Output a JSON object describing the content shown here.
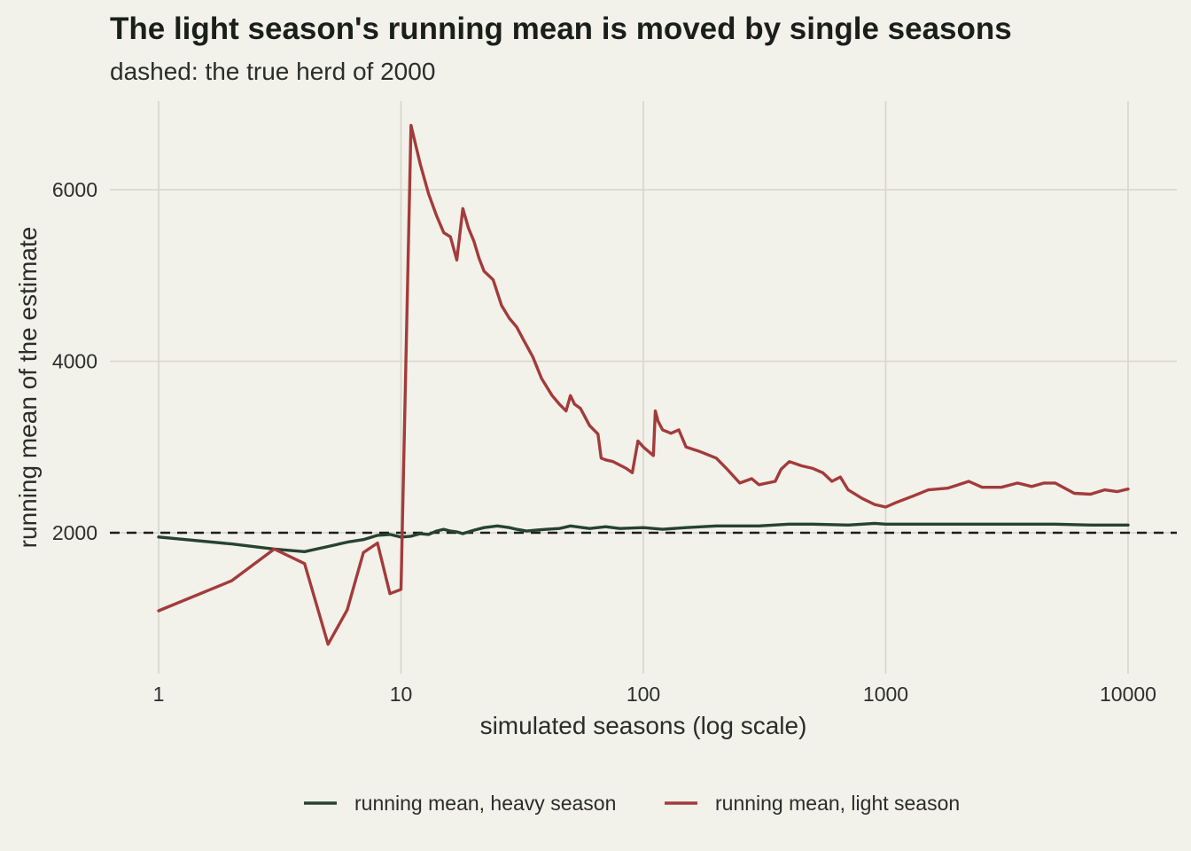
{
  "chart_data": {
    "type": "line",
    "title": "The light season's running mean is moved by single seasons",
    "subtitle": "dashed: the true herd of 2000",
    "xlabel": "simulated seasons (log scale)",
    "ylabel": "running mean of the estimate",
    "x_scale": "log10",
    "xlim": [
      1,
      10000
    ],
    "ylim": [
      500,
      7000
    ],
    "x_ticks": [
      1,
      10,
      100,
      1000,
      10000
    ],
    "x_tick_labels": [
      "1",
      "10",
      "100",
      "1000",
      "10000"
    ],
    "y_ticks": [
      2000,
      4000,
      6000
    ],
    "y_tick_labels": [
      "2000",
      "4000",
      "6000"
    ],
    "grid": true,
    "legend_position": "bottom",
    "reference_line": {
      "y": 2000,
      "style": "dashed",
      "color": "#1a1f1b"
    },
    "series": [
      {
        "name": "running mean, heavy season",
        "color": "#26432f",
        "points": [
          [
            1,
            1950
          ],
          [
            2,
            1870
          ],
          [
            3,
            1810
          ],
          [
            4,
            1780
          ],
          [
            5,
            1840
          ],
          [
            6,
            1890
          ],
          [
            7,
            1920
          ],
          [
            8,
            1970
          ],
          [
            9,
            1980
          ],
          [
            10,
            1950
          ],
          [
            11,
            1960
          ],
          [
            12,
            1990
          ],
          [
            13,
            1980
          ],
          [
            14,
            2020
          ],
          [
            15,
            2040
          ],
          [
            16,
            2020
          ],
          [
            17,
            2010
          ],
          [
            18,
            1990
          ],
          [
            20,
            2030
          ],
          [
            22,
            2060
          ],
          [
            25,
            2080
          ],
          [
            28,
            2060
          ],
          [
            30,
            2040
          ],
          [
            33,
            2020
          ],
          [
            36,
            2030
          ],
          [
            40,
            2040
          ],
          [
            45,
            2050
          ],
          [
            50,
            2080
          ],
          [
            60,
            2050
          ],
          [
            70,
            2070
          ],
          [
            80,
            2050
          ],
          [
            100,
            2060
          ],
          [
            120,
            2040
          ],
          [
            150,
            2060
          ],
          [
            200,
            2080
          ],
          [
            300,
            2080
          ],
          [
            400,
            2100
          ],
          [
            500,
            2100
          ],
          [
            700,
            2090
          ],
          [
            900,
            2110
          ],
          [
            1000,
            2100
          ],
          [
            1500,
            2100
          ],
          [
            2000,
            2100
          ],
          [
            3000,
            2100
          ],
          [
            5000,
            2100
          ],
          [
            7000,
            2090
          ],
          [
            10000,
            2090
          ]
        ]
      },
      {
        "name": "running mean, light season",
        "color": "#a33b3b",
        "points": [
          [
            1,
            1090
          ],
          [
            2,
            1440
          ],
          [
            3,
            1810
          ],
          [
            4,
            1640
          ],
          [
            5,
            700
          ],
          [
            6,
            1100
          ],
          [
            7,
            1770
          ],
          [
            8,
            1880
          ],
          [
            9,
            1290
          ],
          [
            10,
            1340
          ],
          [
            11,
            6750
          ],
          [
            12,
            6300
          ],
          [
            13,
            5950
          ],
          [
            14,
            5700
          ],
          [
            15,
            5500
          ],
          [
            16,
            5450
          ],
          [
            17,
            5180
          ],
          [
            18,
            5780
          ],
          [
            19,
            5550
          ],
          [
            20,
            5400
          ],
          [
            21,
            5200
          ],
          [
            22,
            5050
          ],
          [
            24,
            4950
          ],
          [
            26,
            4650
          ],
          [
            28,
            4500
          ],
          [
            30,
            4400
          ],
          [
            32,
            4250
          ],
          [
            35,
            4050
          ],
          [
            38,
            3800
          ],
          [
            42,
            3600
          ],
          [
            45,
            3500
          ],
          [
            48,
            3420
          ],
          [
            50,
            3600
          ],
          [
            52,
            3500
          ],
          [
            55,
            3450
          ],
          [
            60,
            3250
          ],
          [
            65,
            3150
          ],
          [
            67,
            2870
          ],
          [
            70,
            2850
          ],
          [
            75,
            2830
          ],
          [
            85,
            2750
          ],
          [
            90,
            2700
          ],
          [
            95,
            3070
          ],
          [
            100,
            3000
          ],
          [
            110,
            2900
          ],
          [
            112,
            3420
          ],
          [
            115,
            3300
          ],
          [
            120,
            3200
          ],
          [
            130,
            3160
          ],
          [
            140,
            3200
          ],
          [
            150,
            3000
          ],
          [
            170,
            2950
          ],
          [
            200,
            2870
          ],
          [
            220,
            2750
          ],
          [
            250,
            2580
          ],
          [
            280,
            2630
          ],
          [
            300,
            2560
          ],
          [
            350,
            2600
          ],
          [
            370,
            2740
          ],
          [
            400,
            2830
          ],
          [
            450,
            2780
          ],
          [
            500,
            2750
          ],
          [
            550,
            2700
          ],
          [
            600,
            2600
          ],
          [
            650,
            2650
          ],
          [
            700,
            2500
          ],
          [
            800,
            2400
          ],
          [
            900,
            2330
          ],
          [
            1000,
            2300
          ],
          [
            1100,
            2350
          ],
          [
            1300,
            2430
          ],
          [
            1500,
            2500
          ],
          [
            1800,
            2520
          ],
          [
            2000,
            2560
          ],
          [
            2200,
            2600
          ],
          [
            2500,
            2530
          ],
          [
            3000,
            2530
          ],
          [
            3500,
            2580
          ],
          [
            4000,
            2540
          ],
          [
            4500,
            2580
          ],
          [
            5000,
            2580
          ],
          [
            6000,
            2460
          ],
          [
            7000,
            2450
          ],
          [
            8000,
            2500
          ],
          [
            9000,
            2480
          ],
          [
            10000,
            2510
          ]
        ]
      }
    ]
  }
}
